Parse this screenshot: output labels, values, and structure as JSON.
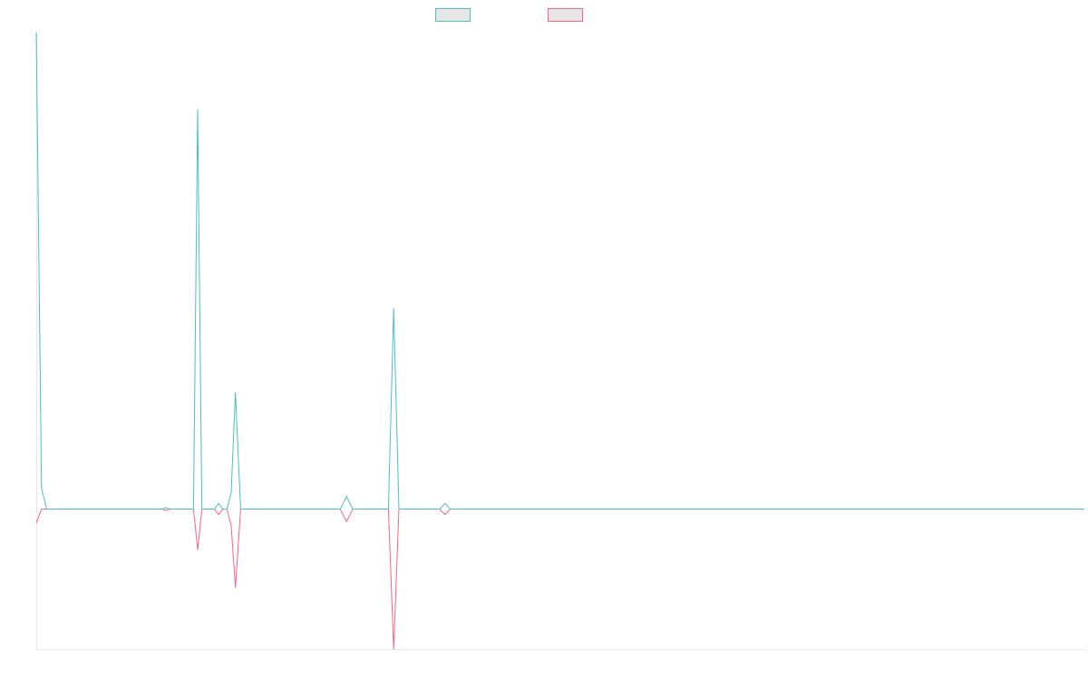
{
  "chart_data": {
    "type": "line",
    "title": "",
    "xlabel": "",
    "ylabel": "",
    "legend_placement": "top-center",
    "grid": false,
    "xlim": [
      0,
      1000
    ],
    "ylim": [
      -100,
      340
    ],
    "x": [
      0,
      5,
      10,
      15,
      120,
      124,
      128,
      132,
      150,
      154,
      158,
      170,
      174,
      178,
      182,
      186,
      190,
      195,
      200,
      290,
      296,
      302,
      315,
      336,
      341,
      346,
      380,
      385,
      390,
      395,
      1000
    ],
    "series": [
      {
        "color": "#4BC0C0",
        "values": [
          340,
          15,
          0,
          0,
          0,
          1,
          0,
          0,
          0,
          285,
          0,
          0,
          4,
          0,
          0,
          12,
          83,
          0,
          0,
          0,
          9,
          0,
          0,
          0,
          143,
          0,
          0,
          0,
          4,
          0,
          0
        ]
      },
      {
        "color": "#FF6384",
        "values": [
          -10,
          0,
          0,
          0,
          0,
          -1,
          0,
          0,
          0,
          -29,
          0,
          0,
          -4,
          0,
          0,
          -12,
          -56,
          0,
          0,
          0,
          -9,
          0,
          0,
          0,
          -100,
          0,
          0,
          0,
          -4,
          0,
          0
        ]
      }
    ]
  }
}
